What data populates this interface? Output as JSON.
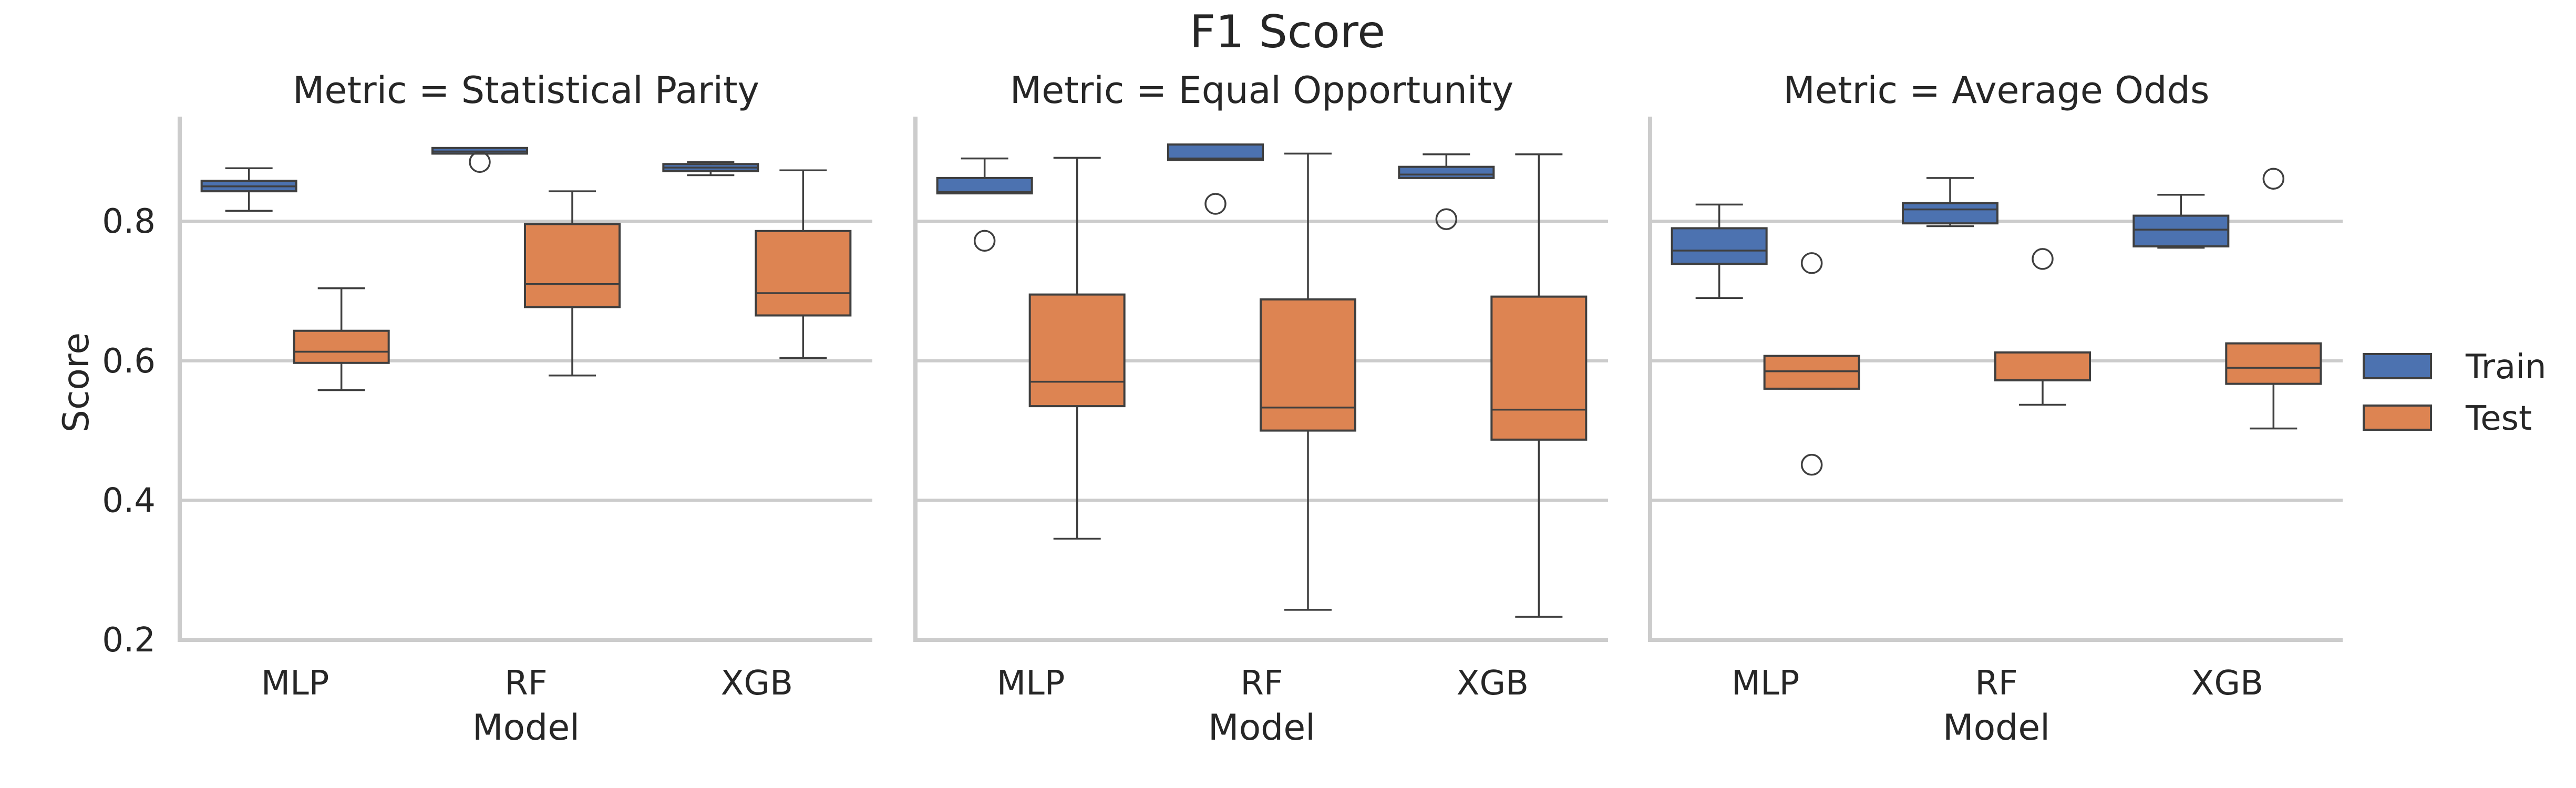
{
  "chart_data": {
    "type": "box",
    "title": "F1 Score",
    "ylabel": "Score",
    "xlabel": "Model",
    "ylim": [
      0.2,
      0.95
    ],
    "yticks": [
      0.2,
      0.4,
      0.6,
      0.8
    ],
    "grid": true,
    "legend_position": "right",
    "categories": [
      "MLP",
      "RF",
      "XGB"
    ],
    "series": [
      {
        "name": "Train",
        "color": "#4c72b0"
      },
      {
        "name": "Test",
        "color": "#dd8452"
      }
    ],
    "panels": [
      {
        "title": "Metric = Statistical Parity",
        "boxes": {
          "Train": [
            {
              "category": "MLP",
              "whislo": 0.815,
              "q1": 0.843,
              "med": 0.85,
              "q3": 0.858,
              "whishi": 0.876,
              "fliers": []
            },
            {
              "category": "RF",
              "whislo": 0.897,
              "q1": 0.897,
              "med": 0.9,
              "q3": 0.905,
              "whishi": 0.905,
              "fliers": [
                0.885
              ]
            },
            {
              "category": "XGB",
              "whislo": 0.866,
              "q1": 0.872,
              "med": 0.877,
              "q3": 0.882,
              "whishi": 0.885,
              "fliers": []
            }
          ],
          "Test": [
            {
              "category": "MLP",
              "whislo": 0.558,
              "q1": 0.597,
              "med": 0.613,
              "q3": 0.643,
              "whishi": 0.704,
              "fliers": []
            },
            {
              "category": "RF",
              "whislo": 0.579,
              "q1": 0.677,
              "med": 0.71,
              "q3": 0.796,
              "whishi": 0.843,
              "fliers": []
            },
            {
              "category": "XGB",
              "whislo": 0.604,
              "q1": 0.665,
              "med": 0.697,
              "q3": 0.786,
              "whishi": 0.873,
              "fliers": []
            }
          ]
        }
      },
      {
        "title": "Metric = Equal Opportunity",
        "boxes": {
          "Train": [
            {
              "category": "MLP",
              "whislo": 0.84,
              "q1": 0.84,
              "med": 0.842,
              "q3": 0.862,
              "whishi": 0.89,
              "fliers": [
                0.772
              ]
            },
            {
              "category": "RF",
              "whislo": 0.888,
              "q1": 0.888,
              "med": 0.89,
              "q3": 0.91,
              "whishi": 0.91,
              "fliers": [
                0.825
              ]
            },
            {
              "category": "XGB",
              "whislo": 0.862,
              "q1": 0.862,
              "med": 0.867,
              "q3": 0.878,
              "whishi": 0.896,
              "fliers": [
                0.803
              ]
            }
          ],
          "Test": [
            {
              "category": "MLP",
              "whislo": 0.345,
              "q1": 0.535,
              "med": 0.57,
              "q3": 0.695,
              "whishi": 0.891,
              "fliers": []
            },
            {
              "category": "RF",
              "whislo": 0.243,
              "q1": 0.5,
              "med": 0.533,
              "q3": 0.688,
              "whishi": 0.897,
              "fliers": []
            },
            {
              "category": "XGB",
              "whislo": 0.233,
              "q1": 0.487,
              "med": 0.53,
              "q3": 0.692,
              "whishi": 0.896,
              "fliers": []
            }
          ]
        }
      },
      {
        "title": "Metric = Average Odds",
        "boxes": {
          "Train": [
            {
              "category": "MLP",
              "whislo": 0.69,
              "q1": 0.739,
              "med": 0.758,
              "q3": 0.79,
              "whishi": 0.824,
              "fliers": []
            },
            {
              "category": "RF",
              "whislo": 0.793,
              "q1": 0.797,
              "med": 0.817,
              "q3": 0.826,
              "whishi": 0.862,
              "fliers": []
            },
            {
              "category": "XGB",
              "whislo": 0.762,
              "q1": 0.764,
              "med": 0.788,
              "q3": 0.808,
              "whishi": 0.838,
              "fliers": []
            }
          ],
          "Test": [
            {
              "category": "MLP",
              "whislo": 0.56,
              "q1": 0.56,
              "med": 0.585,
              "q3": 0.607,
              "whishi": 0.607,
              "fliers": [
                0.74,
                0.451
              ]
            },
            {
              "category": "RF",
              "whislo": 0.537,
              "q1": 0.572,
              "med": 0.572,
              "q3": 0.612,
              "whishi": 0.612,
              "fliers": [
                0.746
              ]
            },
            {
              "category": "XGB",
              "whislo": 0.503,
              "q1": 0.567,
              "med": 0.59,
              "q3": 0.625,
              "whishi": 0.625,
              "fliers": [
                0.861
              ]
            }
          ]
        }
      }
    ]
  }
}
